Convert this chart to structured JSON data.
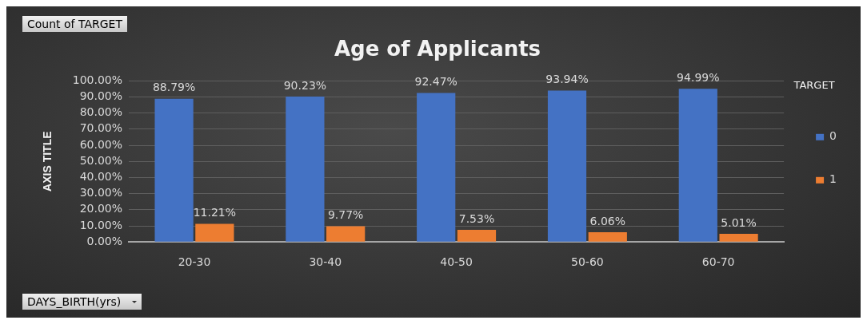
{
  "chart_data": {
    "type": "bar",
    "title": "Age of Applicants",
    "xlabel": "DAYS_BIRTH(yrs)",
    "ylabel": "AXIS TITLE",
    "legend_title": "TARGET",
    "annotations": [
      "Count of TARGET"
    ],
    "categories": [
      "20-30",
      "30-40",
      "40-50",
      "50-60",
      "60-70"
    ],
    "series": [
      {
        "name": "0",
        "color": "#4472c4",
        "values": [
          88.79,
          90.23,
          92.47,
          93.94,
          94.99
        ],
        "value_labels": [
          "88.79%",
          "90.23%",
          "92.47%",
          "93.94%",
          "94.99%"
        ]
      },
      {
        "name": "1",
        "color": "#ed7d31",
        "values": [
          11.21,
          9.77,
          7.53,
          6.06,
          5.01
        ],
        "value_labels": [
          "11.21%",
          "9.77%",
          "7.53%",
          "6.06%",
          "5.01%"
        ]
      }
    ],
    "ylim": [
      0,
      100
    ],
    "yticks": [
      {
        "value": 0,
        "label": "0.00%"
      },
      {
        "value": 10,
        "label": "10.00%"
      },
      {
        "value": 20,
        "label": "20.00%"
      },
      {
        "value": 30,
        "label": "30.00%"
      },
      {
        "value": 40,
        "label": "40.00%"
      },
      {
        "value": 50,
        "label": "50.00%"
      },
      {
        "value": 60,
        "label": "60.00%"
      },
      {
        "value": 70,
        "label": "70.00%"
      },
      {
        "value": 80,
        "label": "80.00%"
      },
      {
        "value": 90,
        "label": "90.00%"
      },
      {
        "value": 100,
        "label": "100.00%"
      }
    ],
    "grid": "y",
    "legend": "right"
  }
}
